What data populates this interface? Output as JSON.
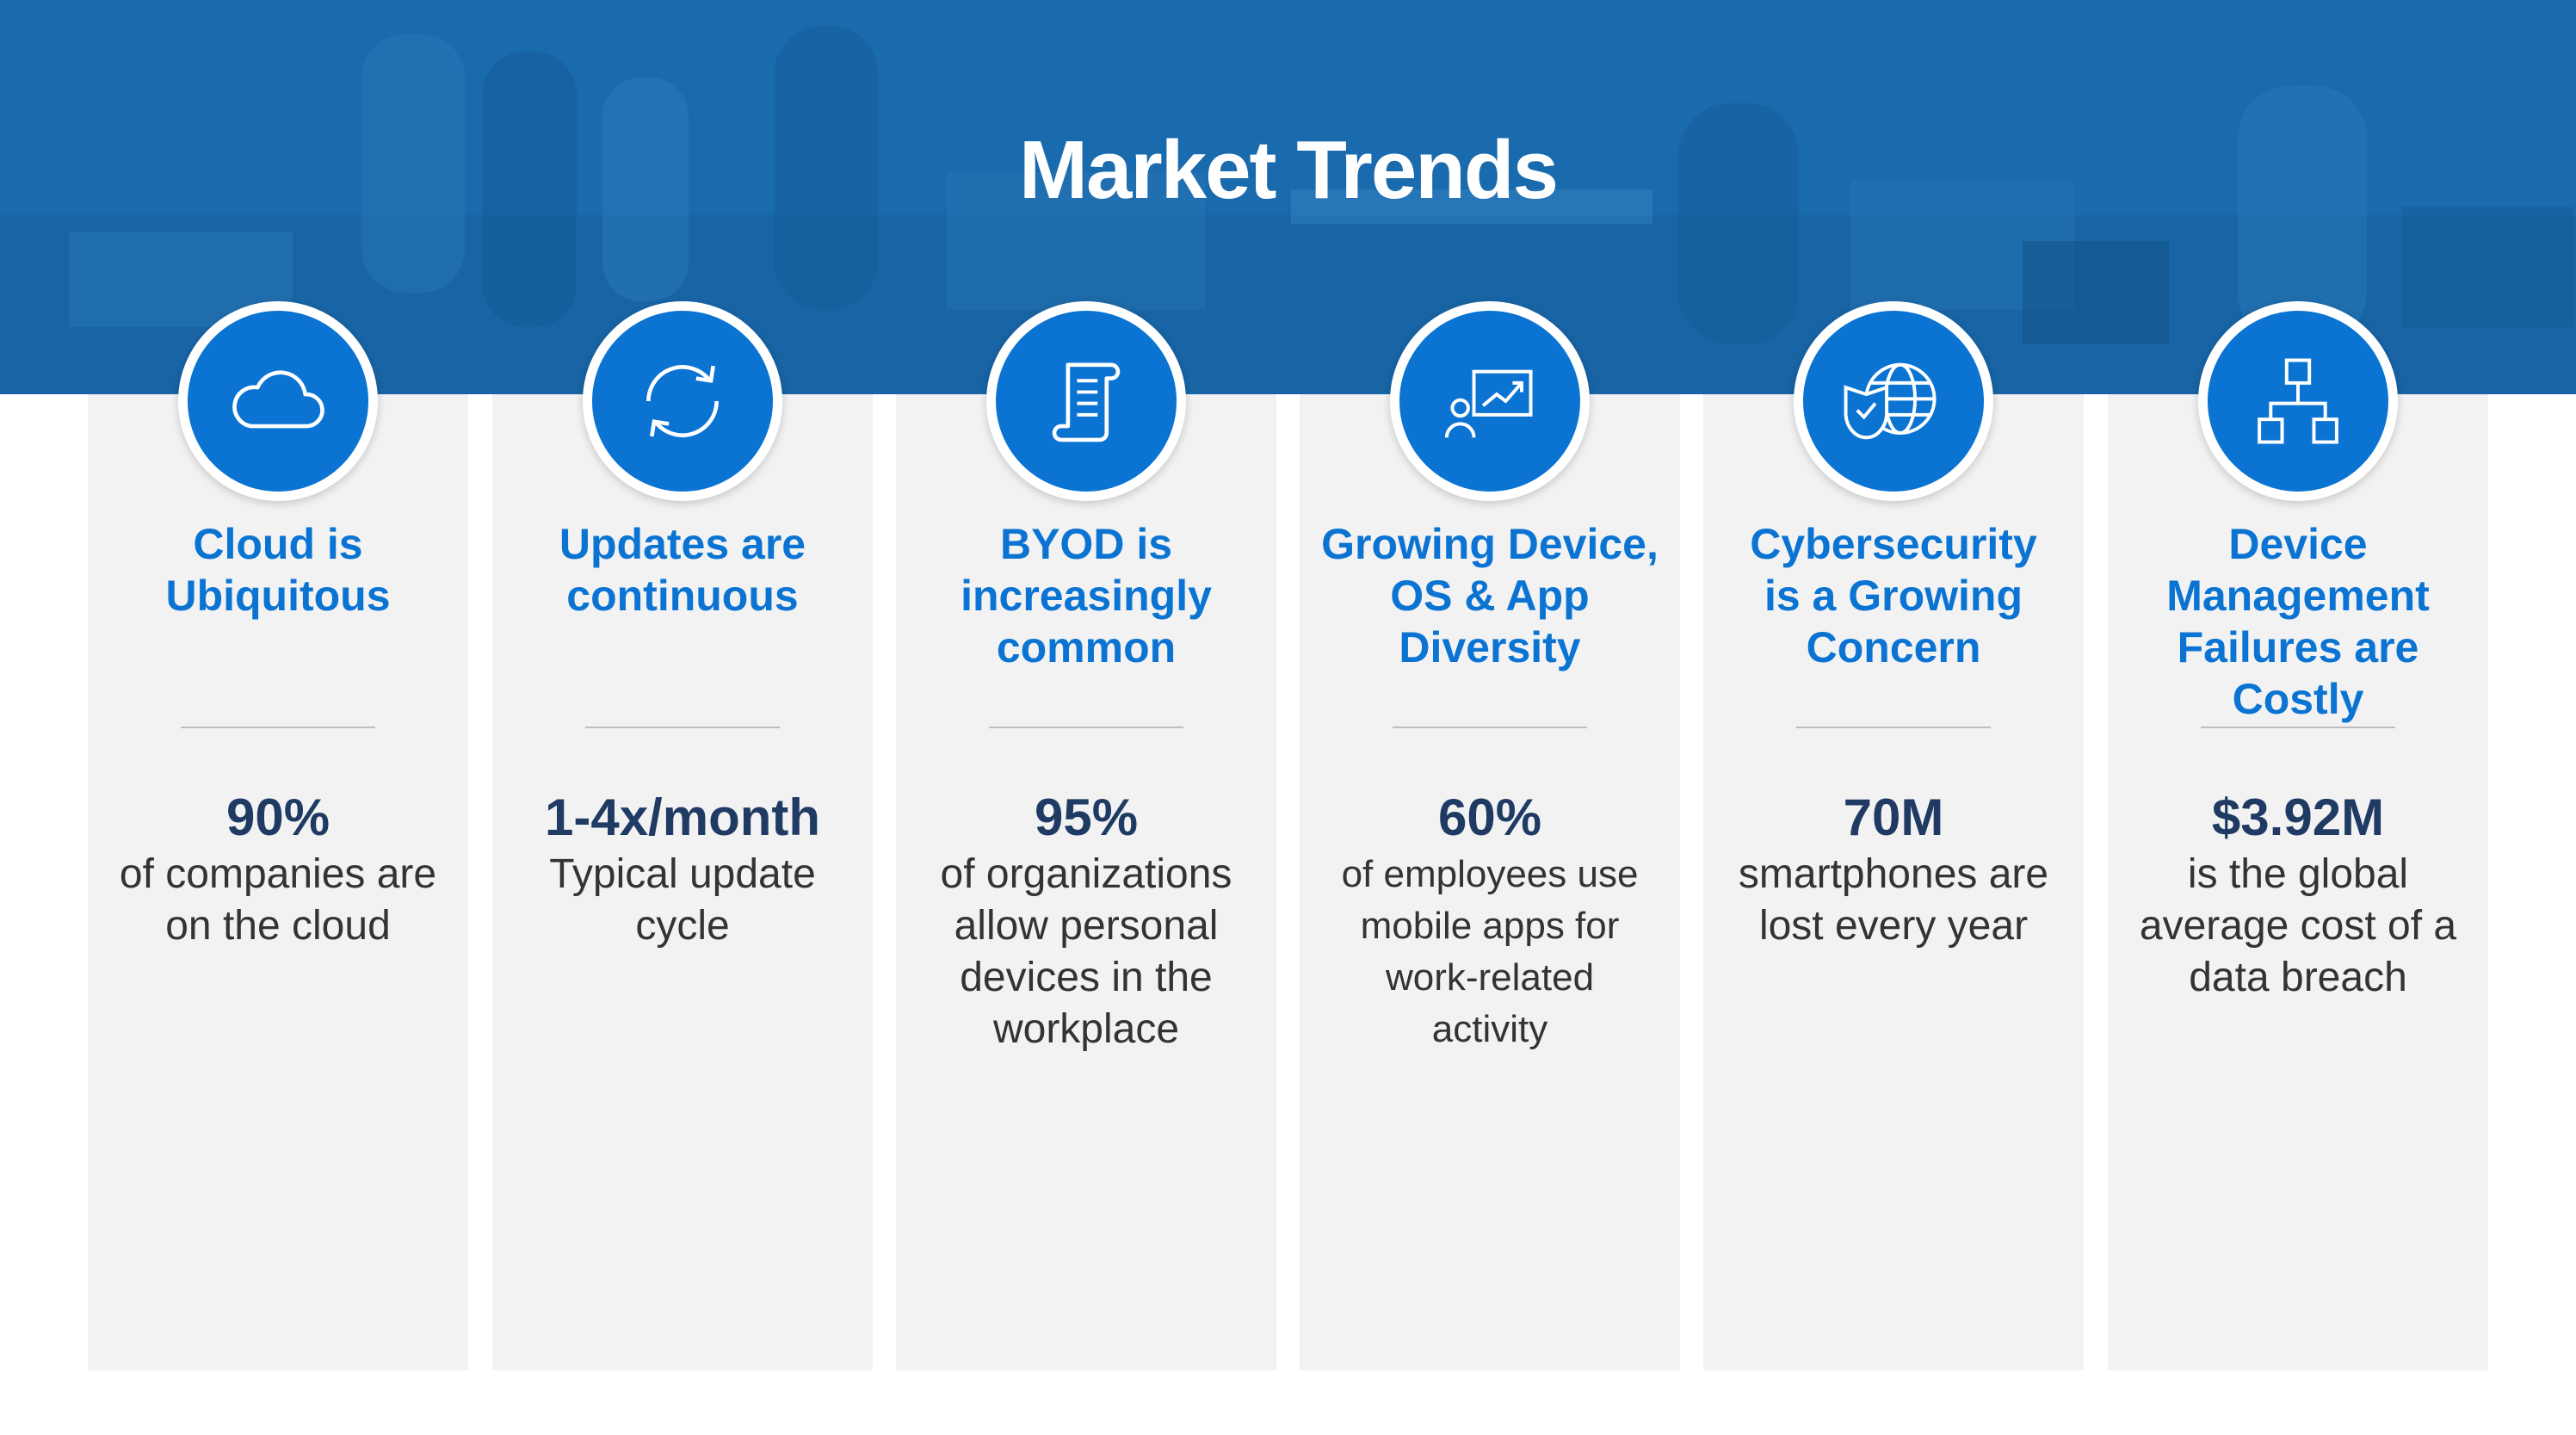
{
  "title": "Market Trends",
  "colors": {
    "banner": "#1a6aae",
    "accent": "#0b74d3",
    "stat": "#1f3b63",
    "card": "#f2f2f2"
  },
  "trends": [
    {
      "icon": "cloud-icon",
      "heading": [
        "Cloud is",
        "Ubiquitous"
      ],
      "stat": "90%",
      "desc": [
        "of companies are",
        "on the cloud"
      ]
    },
    {
      "icon": "sync-icon",
      "heading": [
        "Updates are",
        "continuous"
      ],
      "stat": "1-4x/month",
      "desc": [
        "Typical update",
        "cycle"
      ]
    },
    {
      "icon": "document-scroll-icon",
      "heading": [
        "BYOD is",
        "increasingly",
        "common"
      ],
      "stat": "95%",
      "desc": [
        "of organizations",
        "allow personal",
        "devices in the",
        "workplace"
      ]
    },
    {
      "icon": "presentation-chart-icon",
      "heading": [
        "Growing Device,",
        "OS & App",
        "Diversity"
      ],
      "stat": "60%",
      "desc": [
        "of employees use",
        "mobile apps for",
        "work-related",
        "activity"
      ]
    },
    {
      "icon": "globe-shield-icon",
      "heading": [
        "Cybersecurity",
        "is a Growing",
        "Concern"
      ],
      "stat": "70M",
      "desc": [
        "smartphones are",
        "lost every year"
      ]
    },
    {
      "icon": "hierarchy-icon",
      "heading": [
        "Device",
        "Management",
        "Failures are Costly"
      ],
      "stat": "$3.92M",
      "desc": [
        "is the global",
        "average cost of a",
        "data breach"
      ]
    }
  ]
}
